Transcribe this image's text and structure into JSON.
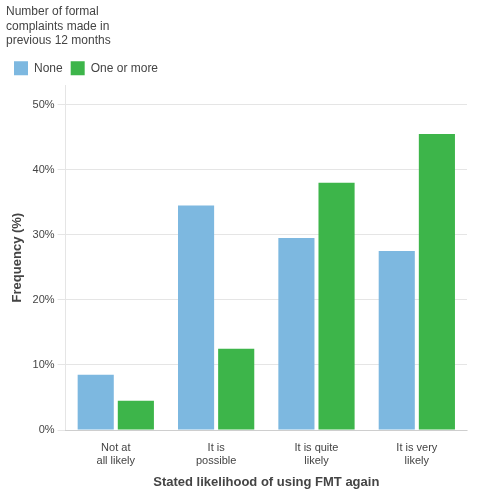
{
  "chart_data": {
    "type": "bar",
    "categories": [
      "Not at all likely",
      "It is possible",
      "It is quite likely",
      "It is very likely"
    ],
    "series": [
      {
        "name": "None",
        "color": "#7DB8E0",
        "values": [
          8.5,
          34.5,
          29.5,
          27.5
        ]
      },
      {
        "name": "One or more",
        "color": "#3DB54A",
        "values": [
          4.5,
          12.5,
          38.0,
          45.5
        ]
      }
    ],
    "xlabel": "Stated likelihood of using FMT again",
    "ylabel": "Frequency (%)",
    "legend_title": "Number of formal\ncomplaints made in\nprevious 12 months",
    "ylim": [
      0,
      53
    ],
    "yticks": [
      {
        "value": 0,
        "label": "0%"
      },
      {
        "value": 10,
        "label": "10%"
      },
      {
        "value": 20,
        "label": "20%"
      },
      {
        "value": 30,
        "label": "30%"
      },
      {
        "value": 40,
        "label": "40%"
      },
      {
        "value": 50,
        "label": "50%"
      }
    ],
    "grid": true,
    "legend": "upper left"
  }
}
